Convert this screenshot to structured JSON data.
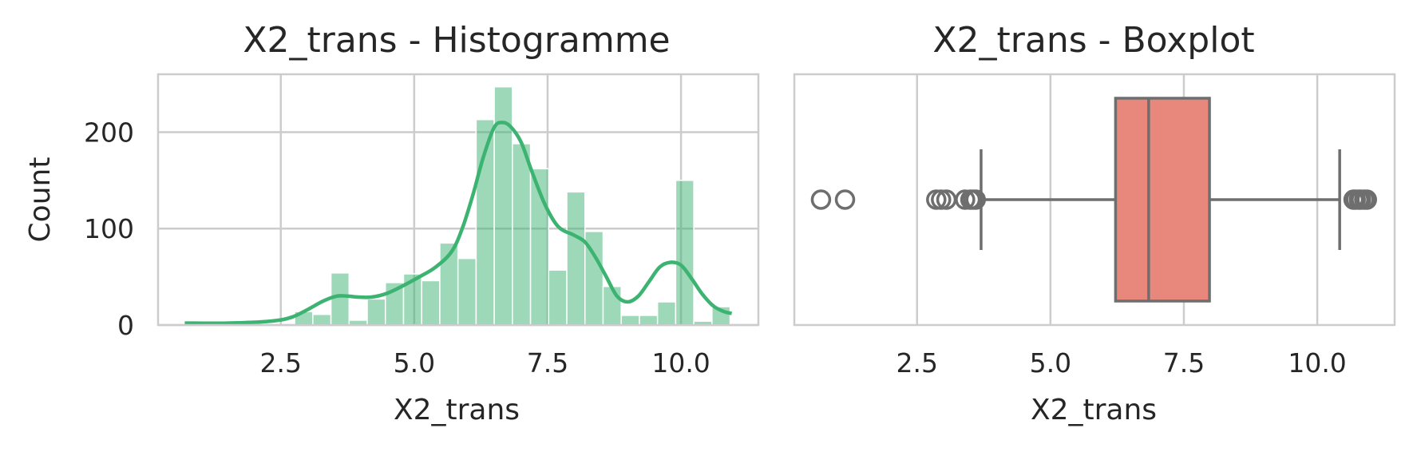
{
  "chart_data": [
    {
      "type": "bar",
      "title": "X2_trans - Histogramme",
      "xlabel": "X2_trans",
      "ylabel": "Count",
      "xlim": [
        0.2,
        11.45
      ],
      "ylim": [
        0,
        260
      ],
      "xticks": [
        2.5,
        5.0,
        7.5,
        10.0
      ],
      "xtick_labels": [
        "2.5",
        "5.0",
        "7.5",
        "10.0"
      ],
      "yticks": [
        0,
        100,
        200
      ],
      "ytick_labels": [
        "0",
        "100",
        "200"
      ],
      "grid": true,
      "bar_color": "#3cb371",
      "bins": [
        {
          "x0": 2.76,
          "x1": 3.1,
          "count": 14
        },
        {
          "x0": 3.1,
          "x1": 3.44,
          "count": 11
        },
        {
          "x0": 3.44,
          "x1": 3.78,
          "count": 54
        },
        {
          "x0": 3.78,
          "x1": 4.12,
          "count": 5
        },
        {
          "x0": 4.12,
          "x1": 4.46,
          "count": 27
        },
        {
          "x0": 4.46,
          "x1": 4.8,
          "count": 44
        },
        {
          "x0": 4.8,
          "x1": 5.14,
          "count": 53
        },
        {
          "x0": 5.14,
          "x1": 5.48,
          "count": 46
        },
        {
          "x0": 5.48,
          "x1": 5.82,
          "count": 85
        },
        {
          "x0": 5.82,
          "x1": 6.16,
          "count": 69
        },
        {
          "x0": 6.16,
          "x1": 6.5,
          "count": 213
        },
        {
          "x0": 6.5,
          "x1": 6.84,
          "count": 247
        },
        {
          "x0": 6.84,
          "x1": 7.18,
          "count": 188
        },
        {
          "x0": 7.18,
          "x1": 7.52,
          "count": 162
        },
        {
          "x0": 7.52,
          "x1": 7.86,
          "count": 57
        },
        {
          "x0": 7.86,
          "x1": 8.2,
          "count": 138
        },
        {
          "x0": 8.2,
          "x1": 8.54,
          "count": 97
        },
        {
          "x0": 8.54,
          "x1": 8.88,
          "count": 40
        },
        {
          "x0": 8.88,
          "x1": 9.22,
          "count": 10
        },
        {
          "x0": 9.22,
          "x1": 9.56,
          "count": 10
        },
        {
          "x0": 9.56,
          "x1": 9.9,
          "count": 24
        },
        {
          "x0": 9.9,
          "x1": 10.24,
          "count": 150
        },
        {
          "x0": 10.24,
          "x1": 10.58,
          "count": 4
        },
        {
          "x0": 10.58,
          "x1": 10.92,
          "count": 19
        }
      ],
      "kde": {
        "color": "#3cb371",
        "x": [
          0.7,
          1.5,
          2.3,
          2.7,
          3.0,
          3.3,
          3.55,
          3.75,
          3.95,
          4.2,
          4.5,
          4.8,
          5.1,
          5.4,
          5.7,
          5.9,
          6.1,
          6.3,
          6.5,
          6.65,
          6.8,
          7.0,
          7.2,
          7.45,
          7.7,
          8.0,
          8.2,
          8.4,
          8.6,
          8.8,
          9.0,
          9.2,
          9.4,
          9.6,
          9.8,
          10.0,
          10.2,
          10.4,
          10.6,
          10.8,
          10.95
        ],
        "y": [
          2,
          2,
          4,
          8,
          16,
          25,
          30,
          30,
          29,
          29,
          33,
          41,
          50,
          60,
          76,
          100,
          135,
          175,
          205,
          210,
          206,
          190,
          160,
          125,
          102,
          93,
          86,
          70,
          50,
          30,
          24,
          30,
          45,
          60,
          65,
          62,
          48,
          32,
          20,
          14,
          12
        ]
      }
    },
    {
      "type": "box",
      "title": "X2_trans - Boxplot",
      "xlabel": "X2_trans",
      "xlim": [
        0.2,
        11.45
      ],
      "xticks": [
        2.5,
        5.0,
        7.5,
        10.0
      ],
      "xtick_labels": [
        "2.5",
        "5.0",
        "7.5",
        "10.0"
      ],
      "grid": true,
      "box_color": "#e8877c",
      "line_color": "#6e6e6e",
      "whisker_low": 3.7,
      "q1": 6.22,
      "median": 6.84,
      "q3": 7.98,
      "whisker_high": 10.42,
      "outliers": [
        0.7,
        1.15,
        2.86,
        2.95,
        3.05,
        3.4,
        3.5,
        3.55,
        3.6,
        10.68,
        10.72,
        10.78,
        10.82,
        10.88,
        10.93
      ]
    }
  ]
}
